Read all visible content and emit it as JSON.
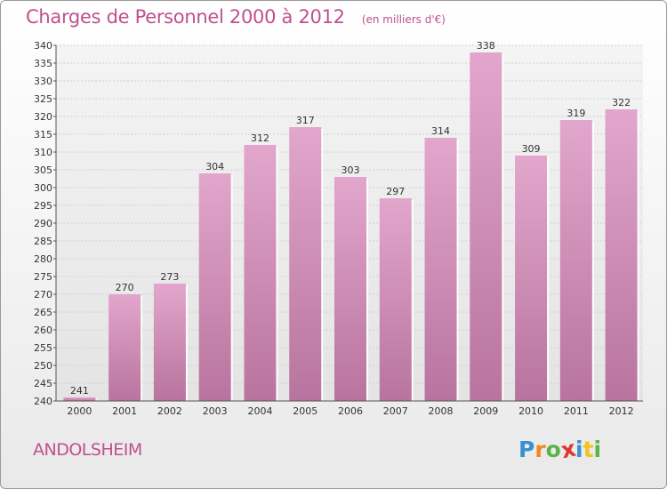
{
  "chart_data": {
    "type": "bar",
    "title": "Charges de Personnel 2000 à 2012",
    "subtitle": "(en milliers d'€)",
    "xlabel": "",
    "ylabel": "",
    "categories": [
      "2000",
      "2001",
      "2002",
      "2003",
      "2004",
      "2005",
      "2006",
      "2007",
      "2008",
      "2009",
      "2010",
      "2011",
      "2012"
    ],
    "values": [
      241,
      270,
      273,
      304,
      312,
      317,
      303,
      297,
      314,
      338,
      309,
      319,
      322
    ],
    "ylim": [
      240,
      340
    ],
    "ytick_step": 5,
    "grid": true,
    "bar_color_top": "#e2a6cc",
    "bar_color_bottom": "#b8749e"
  },
  "footer": {
    "commune": "ANDOLSHEIM",
    "logo_letters": [
      {
        "ch": "P",
        "color": "#3a8fd0"
      },
      {
        "ch": "r",
        "color": "#f08a1c"
      },
      {
        "ch": "o",
        "color": "#5cb34a"
      },
      {
        "ch": "x",
        "color": "#e0362c"
      },
      {
        "ch": "i",
        "color": "#3a8fd0"
      },
      {
        "ch": "t",
        "color": "#f3c21c"
      },
      {
        "ch": "i",
        "color": "#5cb34a"
      }
    ]
  }
}
